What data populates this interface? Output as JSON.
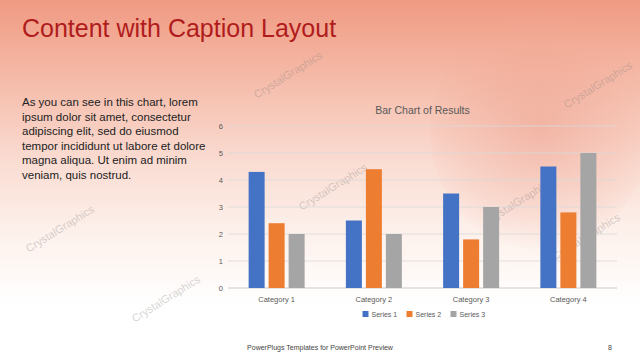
{
  "chart_data": {
    "type": "bar",
    "title": "Bar Chart of Results",
    "categories": [
      "Category 1",
      "Category 2",
      "Category 3",
      "Category 4"
    ],
    "series": [
      {
        "name": "Series 1",
        "color": "#4472c4",
        "values": [
          4.3,
          2.5,
          3.5,
          4.5
        ]
      },
      {
        "name": "Series 2",
        "color": "#ed7d31",
        "values": [
          2.4,
          4.4,
          1.8,
          2.8
        ]
      },
      {
        "name": "Series 3",
        "color": "#a5a5a5",
        "values": [
          2,
          2,
          3,
          5
        ]
      }
    ],
    "ylim": [
      0,
      6
    ],
    "yticks": [
      0,
      1,
      2,
      3,
      4,
      5,
      6
    ],
    "grid": true,
    "legend": "bottom"
  },
  "slide": {
    "title": "Content with Caption Layout",
    "caption": "As you can see in this chart, lorem ipsum dolor sit amet, consectetur adipiscing elit, sed do eiusmod tempor incididunt ut labore et dolore magna aliqua. Ut enim ad minim veniam, quis nostrud.",
    "footer": "PowerPlugs Templates for PowerPoint Preview",
    "page_number": "8",
    "watermark": "CrystalGraphics"
  }
}
